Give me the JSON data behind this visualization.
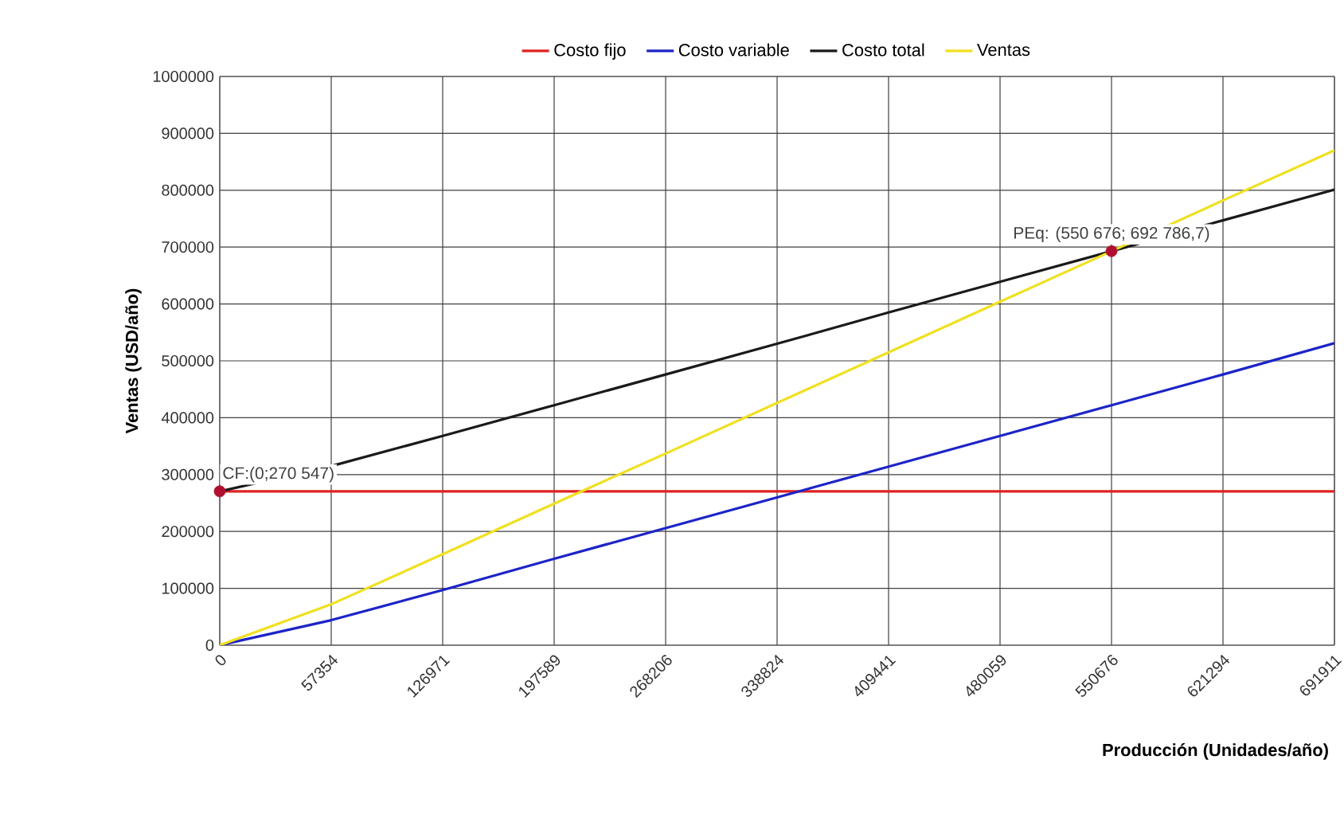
{
  "chart_data": {
    "type": "line",
    "xlabel": "Producción (Unidades/año)",
    "ylabel": "Ventas  (USD/año)",
    "categories": [
      "0",
      "57354",
      "126971",
      "197589",
      "268206",
      "338824",
      "409441",
      "480059",
      "550676",
      "621294",
      "691911"
    ],
    "series": [
      {
        "name": "Costo fijo",
        "color": "#e02020",
        "values": [
          270547,
          270547,
          270547,
          270547,
          270547,
          270547,
          270547,
          270547,
          270547,
          270547,
          270547
        ]
      },
      {
        "name": "Costo variable",
        "color": "#1c24c8",
        "values": [
          0,
          44000,
          97000,
          152000,
          206000,
          260000,
          314000,
          368000,
          422000,
          476000,
          531000
        ]
      },
      {
        "name": "Costo total",
        "color": "#1a1a1a",
        "values": [
          270547,
          315000,
          368000,
          422000,
          476000,
          530000,
          585000,
          639000,
          692786,
          747000,
          801000
        ]
      },
      {
        "name": "Ventas",
        "color": "#f0e020",
        "values": [
          0,
          72000,
          160000,
          249000,
          337000,
          426000,
          515000,
          604000,
          692786,
          782000,
          870000
        ]
      },
      {
        "type": "scatter",
        "marker": "circle",
        "color": "#b01030",
        "x": [
          "0",
          "550676"
        ],
        "values": [
          270547,
          692786
        ]
      }
    ],
    "ylim": [
      0,
      1000000
    ],
    "yticks": [
      0,
      100000,
      200000,
      300000,
      400000,
      500000,
      600000,
      700000,
      800000,
      900000,
      1000000
    ],
    "grid": true,
    "legend": "top",
    "annotations": [
      {
        "text": "CF:(0;270 547)",
        "x": "0",
        "y": 270547
      },
      {
        "text": "PEq: (550 676; 692 786,7)",
        "x": "550676",
        "y": 692786
      }
    ]
  }
}
